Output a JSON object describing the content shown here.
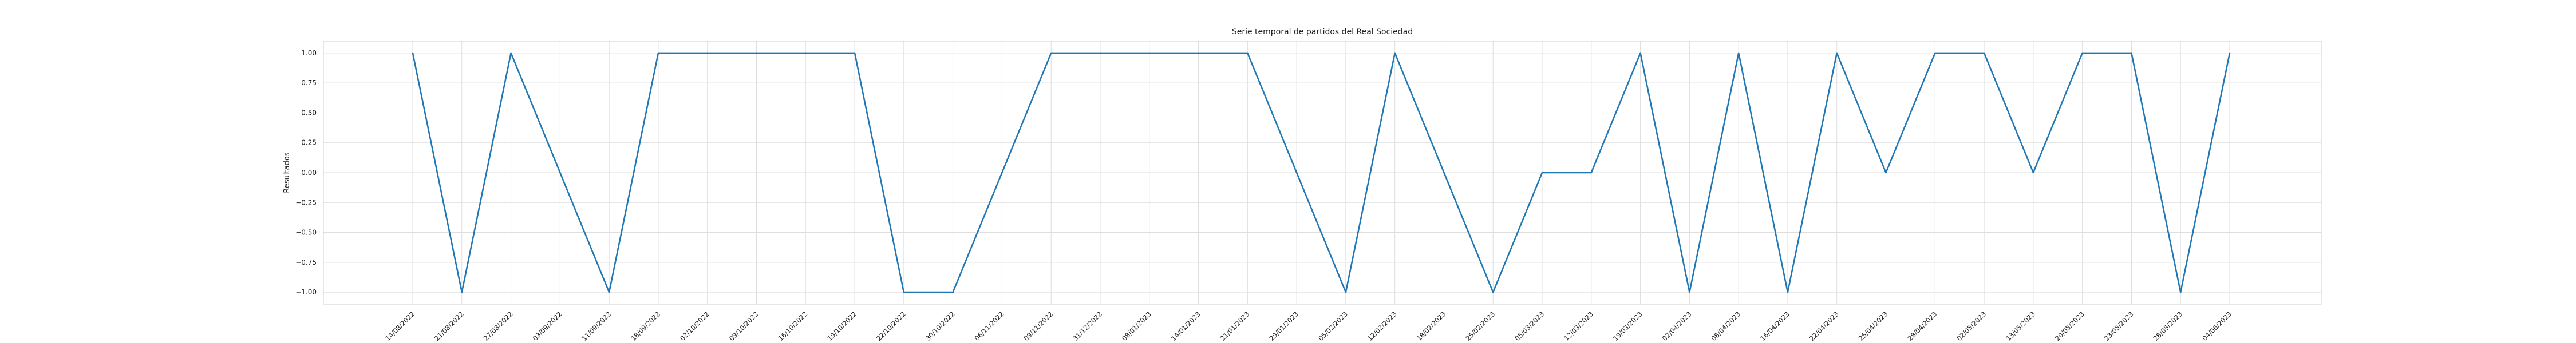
{
  "chart_data": {
    "type": "line",
    "title": "Serie temporal de partidos del Real Sociedad",
    "xlabel": "",
    "ylabel": "Resultados",
    "ylim": [
      -1.1,
      1.1
    ],
    "yticks": [
      -1.0,
      -0.75,
      -0.5,
      -0.25,
      0.0,
      0.25,
      0.5,
      0.75,
      1.0
    ],
    "ytick_labels": [
      "−1.00",
      "−0.75",
      "−0.50",
      "−0.25",
      "0.00",
      "0.25",
      "0.50",
      "0.75",
      "1.00"
    ],
    "grid": true,
    "series_color": "#1f77b4",
    "x": [
      "14/08/2022",
      "21/08/2022",
      "27/08/2022",
      "03/09/2022",
      "11/09/2022",
      "18/09/2022",
      "02/10/2022",
      "09/10/2022",
      "16/10/2022",
      "19/10/2022",
      "22/10/2022",
      "30/10/2022",
      "06/11/2022",
      "09/11/2022",
      "31/12/2022",
      "08/01/2023",
      "14/01/2023",
      "21/01/2023",
      "29/01/2023",
      "05/02/2023",
      "12/02/2023",
      "18/02/2023",
      "25/02/2023",
      "05/03/2023",
      "12/03/2023",
      "19/03/2023",
      "02/04/2023",
      "08/04/2023",
      "16/04/2023",
      "22/04/2023",
      "25/04/2023",
      "28/04/2023",
      "02/05/2023",
      "13/05/2023",
      "20/05/2023",
      "23/05/2023",
      "28/05/2023",
      "04/06/2023"
    ],
    "values": [
      1,
      -1,
      1,
      0,
      -1,
      1,
      1,
      1,
      1,
      1,
      -1,
      -1,
      0,
      1,
      1,
      1,
      1,
      1,
      0,
      -1,
      1,
      0,
      -1,
      0,
      0,
      1,
      -1,
      1,
      -1,
      1,
      0,
      1,
      1,
      0,
      1,
      1,
      -1,
      1
    ]
  }
}
